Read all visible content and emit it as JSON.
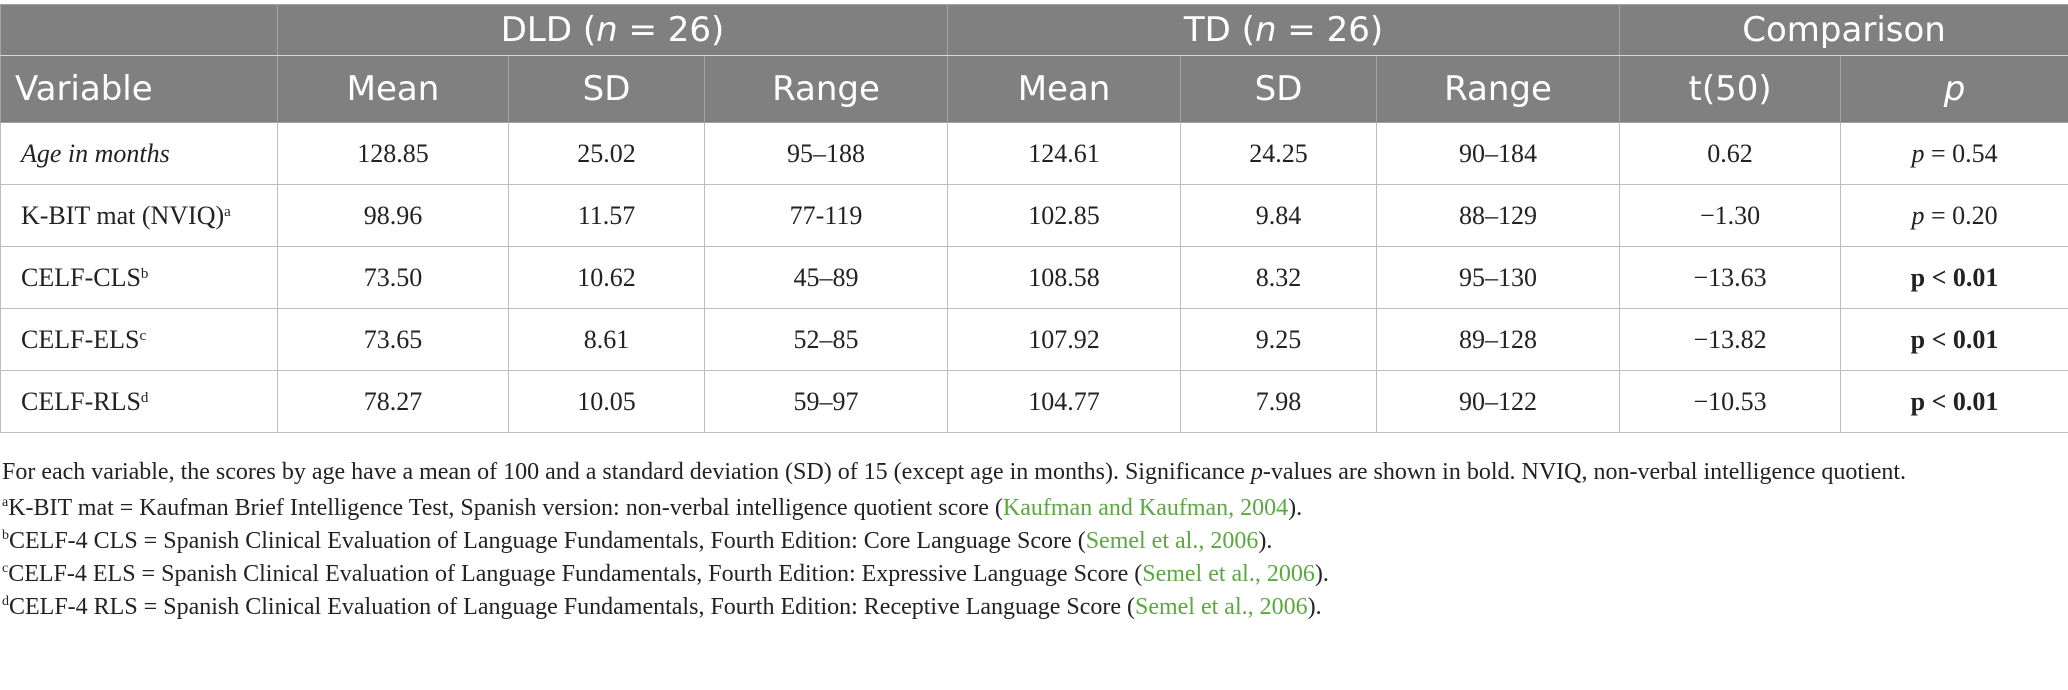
{
  "table": {
    "group_headers": {
      "dld": {
        "prefix": "DLD (",
        "n_label": "n",
        "suffix": " = 26)"
      },
      "td": {
        "prefix": "TD (",
        "n_label": "n",
        "suffix": " = 26)"
      },
      "comparison": "Comparison"
    },
    "column_headers": {
      "variable": "Variable",
      "dld_mean": "Mean",
      "dld_sd": "SD",
      "dld_range": "Range",
      "td_mean": "Mean",
      "td_sd": "SD",
      "td_range": "Range",
      "t": "t(50)",
      "p": "p"
    },
    "rows": [
      {
        "variable": "Age in months",
        "sup": "",
        "dld_mean": "128.85",
        "dld_sd": "25.02",
        "dld_range": "95–188",
        "td_mean": "124.61",
        "td_sd": "24.25",
        "td_range": "90–184",
        "t": "0.62",
        "p_label": "p",
        "p_value": " = 0.54"
      },
      {
        "variable": "K-BIT mat (NVIQ)",
        "sup": "a",
        "dld_mean": "98.96",
        "dld_sd": "11.57",
        "dld_range": "77-119",
        "td_mean": "102.85",
        "td_sd": "9.84",
        "td_range": "88–129",
        "t": "−1.30",
        "p_label": "p",
        "p_value": " = 0.20"
      },
      {
        "variable": "CELF-CLS",
        "sup": "b",
        "dld_mean": "73.50",
        "dld_sd": "10.62",
        "dld_range": "45–89",
        "td_mean": "108.58",
        "td_sd": "8.32",
        "td_range": "95–130",
        "t": "−13.63",
        "p_bold": "p < 0.01"
      },
      {
        "variable": "CELF-ELS",
        "sup": "c",
        "dld_mean": "73.65",
        "dld_sd": "8.61",
        "dld_range": "52–85",
        "td_mean": "107.92",
        "td_sd": "9.25",
        "td_range": "89–128",
        "t": "−13.82",
        "p_bold": "p < 0.01"
      },
      {
        "variable": "CELF-RLS",
        "sup": "d",
        "dld_mean": "78.27",
        "dld_sd": "10.05",
        "dld_range": "59–97",
        "td_mean": "104.77",
        "td_sd": "7.98",
        "td_range": "90–122",
        "t": "−10.53",
        "p_bold": "p < 0.01"
      }
    ]
  },
  "notes": {
    "general": {
      "part1": "For each variable, the scores by age have a mean of 100 and a standard deviation (SD) of 15 (except age in months). Significance ",
      "p_italic": "p",
      "part2": "-values are shown in bold. NVIQ, non-verbal intelligence quotient."
    },
    "footnotes": [
      {
        "sup": "a",
        "text": "K-BIT mat = Kaufman Brief Intelligence Test, Spanish version: non-verbal intelligence quotient score (",
        "cite": "Kaufman and Kaufman, 2004",
        "close": ")."
      },
      {
        "sup": "b",
        "text": "CELF-4 CLS = Spanish Clinical Evaluation of Language Fundamentals, Fourth Edition: Core Language Score (",
        "cite": "Semel et al., 2006",
        "close": ")."
      },
      {
        "sup": "c",
        "text": "CELF-4 ELS = Spanish Clinical Evaluation of Language Fundamentals, Fourth Edition: Expressive Language Score (",
        "cite": "Semel et al., 2006",
        "close": ")."
      },
      {
        "sup": "d",
        "text": "CELF-4 RLS = Spanish Clinical Evaluation of Language Fundamentals, Fourth Edition: Receptive Language Score (",
        "cite": "Semel et al., 2006",
        "close": ")."
      }
    ]
  },
  "colors": {
    "header_bg": "#808080",
    "header_text": "#ffffff",
    "citation": "#5aa83f"
  }
}
